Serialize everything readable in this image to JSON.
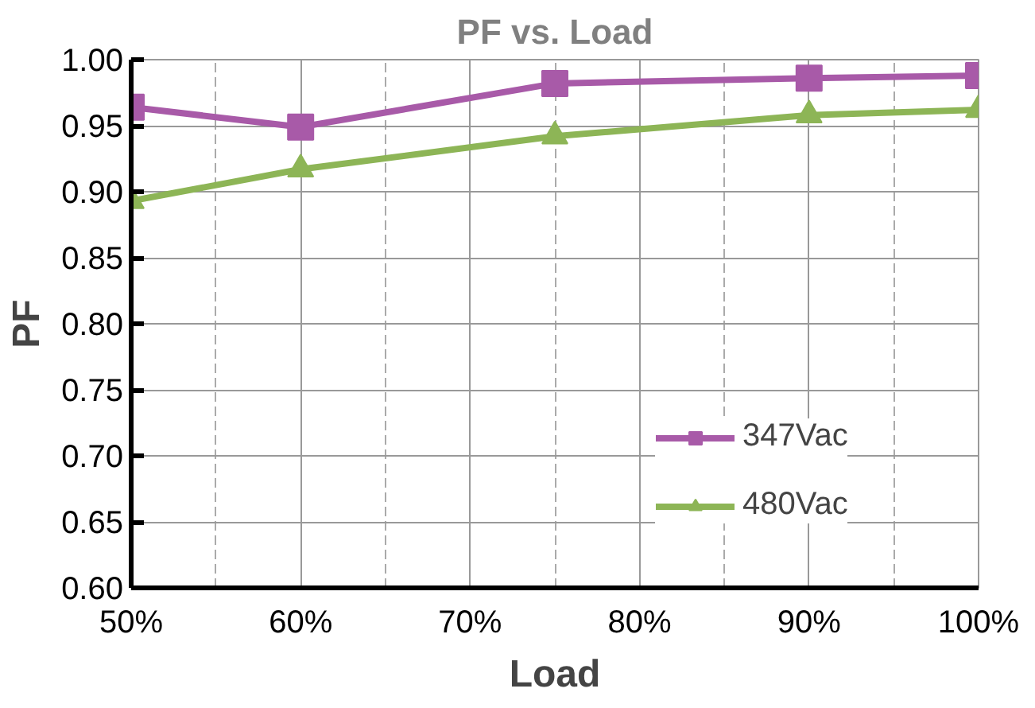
{
  "chart_data": {
    "type": "line",
    "title": "PF vs. Load",
    "xlabel": "Load",
    "ylabel": "PF",
    "x": [
      0.5,
      0.6,
      0.75,
      0.9,
      1.0
    ],
    "series": [
      {
        "name": "347Vac",
        "color": "#a85aa8",
        "marker": "square",
        "values": [
          0.964,
          0.949,
          0.982,
          0.986,
          0.988
        ]
      },
      {
        "name": "480Vac",
        "color": "#8db556",
        "marker": "triangle",
        "values": [
          0.893,
          0.917,
          0.942,
          0.958,
          0.962
        ]
      }
    ],
    "xlim": [
      0.5,
      1.0
    ],
    "xticks": [
      {
        "value": 0.5,
        "label": "50%"
      },
      {
        "value": 0.6,
        "label": "60%"
      },
      {
        "value": 0.7,
        "label": "70%"
      },
      {
        "value": 0.8,
        "label": "80%"
      },
      {
        "value": 0.9,
        "label": "90%"
      },
      {
        "value": 1.0,
        "label": "100%"
      }
    ],
    "ylim": [
      0.6,
      1.0
    ],
    "yticks": [
      {
        "value": 0.6,
        "label": "0.60"
      },
      {
        "value": 0.65,
        "label": "0.65"
      },
      {
        "value": 0.7,
        "label": "0.70"
      },
      {
        "value": 0.75,
        "label": "0.75"
      },
      {
        "value": 0.8,
        "label": "0.80"
      },
      {
        "value": 0.85,
        "label": "0.85"
      },
      {
        "value": 0.9,
        "label": "0.90"
      },
      {
        "value": 0.95,
        "label": "0.95"
      },
      {
        "value": 1.0,
        "label": "1.00"
      }
    ],
    "grid": true,
    "legend": "bottom right",
    "line_style": "solid"
  }
}
